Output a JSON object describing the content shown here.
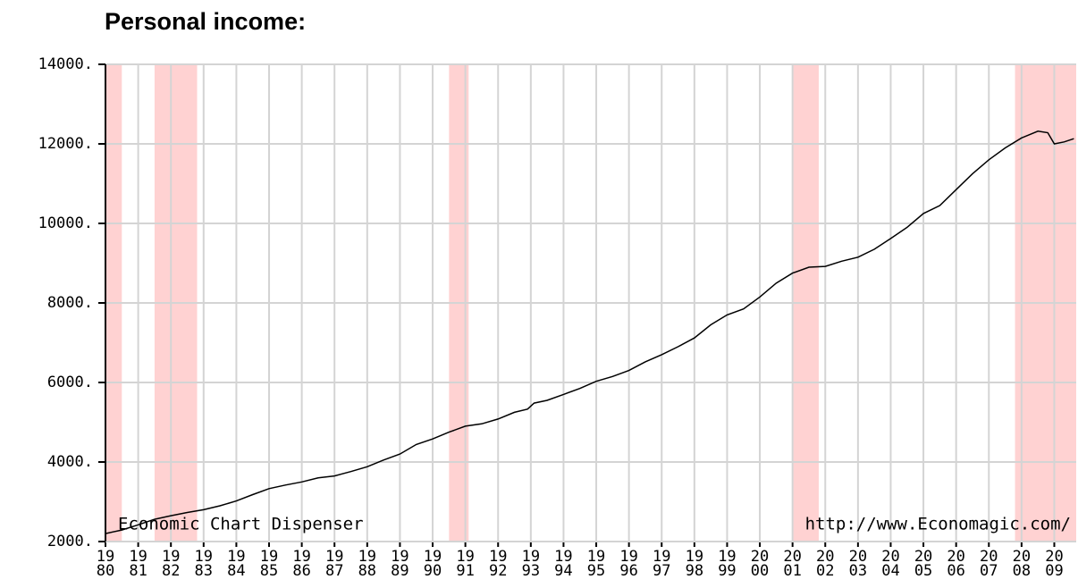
{
  "chart_data": {
    "type": "line",
    "title": "Personal income:",
    "annotations": [
      "Economic Chart Dispenser",
      "http://www.Economagic.com/"
    ],
    "x": [
      1980.0,
      1980.5,
      1981.0,
      1981.5,
      1982.0,
      1982.5,
      1983.0,
      1983.5,
      1984.0,
      1984.5,
      1985.0,
      1985.5,
      1986.0,
      1986.5,
      1987.0,
      1987.5,
      1988.0,
      1988.5,
      1989.0,
      1989.5,
      1990.0,
      1990.5,
      1991.0,
      1991.5,
      1992.0,
      1992.5,
      1992.9,
      1993.1,
      1993.5,
      1994.0,
      1994.5,
      1995.0,
      1995.5,
      1996.0,
      1996.5,
      1997.0,
      1997.5,
      1998.0,
      1998.5,
      1999.0,
      1999.5,
      2000.0,
      2000.5,
      2001.0,
      2001.5,
      2002.0,
      2002.5,
      2003.0,
      2003.5,
      2004.0,
      2004.5,
      2005.0,
      2005.5,
      2006.0,
      2006.5,
      2007.0,
      2007.5,
      2008.0,
      2008.5,
      2008.8,
      2009.0,
      2009.3,
      2009.6
    ],
    "series": [
      {
        "name": "Personal income",
        "color": "#000000",
        "values": [
          2200,
          2290,
          2420,
          2560,
          2650,
          2730,
          2800,
          2900,
          3020,
          3180,
          3330,
          3420,
          3500,
          3600,
          3650,
          3760,
          3880,
          4050,
          4200,
          4440,
          4580,
          4750,
          4900,
          4960,
          5080,
          5250,
          5330,
          5480,
          5550,
          5700,
          5850,
          6030,
          6150,
          6300,
          6520,
          6700,
          6900,
          7120,
          7450,
          7700,
          7850,
          8150,
          8500,
          8750,
          8900,
          8920,
          9050,
          9150,
          9350,
          9620,
          9900,
          10250,
          10450,
          10850,
          11250,
          11600,
          11900,
          12150,
          12320,
          12280,
          12000,
          12050,
          12130
        ]
      }
    ],
    "recessions": [
      [
        1980.0,
        1980.5
      ],
      [
        1981.5,
        1982.8
      ],
      [
        1990.5,
        1991.1
      ],
      [
        2001.0,
        2001.8
      ],
      [
        2007.8,
        2009.67
      ]
    ],
    "recession_color": "#ffd2d2",
    "xlim": [
      1980,
      2009.67
    ],
    "xticks": [
      {
        "value": 1980,
        "label": "19\n80"
      },
      {
        "value": 1981,
        "label": "19\n81"
      },
      {
        "value": 1982,
        "label": "19\n82"
      },
      {
        "value": 1983,
        "label": "19\n83"
      },
      {
        "value": 1984,
        "label": "19\n84"
      },
      {
        "value": 1985,
        "label": "19\n85"
      },
      {
        "value": 1986,
        "label": "19\n86"
      },
      {
        "value": 1987,
        "label": "19\n87"
      },
      {
        "value": 1988,
        "label": "19\n88"
      },
      {
        "value": 1989,
        "label": "19\n89"
      },
      {
        "value": 1990,
        "label": "19\n90"
      },
      {
        "value": 1991,
        "label": "19\n91"
      },
      {
        "value": 1992,
        "label": "19\n92"
      },
      {
        "value": 1993,
        "label": "19\n93"
      },
      {
        "value": 1994,
        "label": "19\n94"
      },
      {
        "value": 1995,
        "label": "19\n95"
      },
      {
        "value": 1996,
        "label": "19\n96"
      },
      {
        "value": 1997,
        "label": "19\n97"
      },
      {
        "value": 1998,
        "label": "19\n98"
      },
      {
        "value": 1999,
        "label": "19\n99"
      },
      {
        "value": 2000,
        "label": "20\n00"
      },
      {
        "value": 2001,
        "label": "20\n01"
      },
      {
        "value": 2002,
        "label": "20\n02"
      },
      {
        "value": 2003,
        "label": "20\n03"
      },
      {
        "value": 2004,
        "label": "20\n04"
      },
      {
        "value": 2005,
        "label": "20\n05"
      },
      {
        "value": 2006,
        "label": "20\n06"
      },
      {
        "value": 2007,
        "label": "20\n07"
      },
      {
        "value": 2008,
        "label": "20\n08"
      },
      {
        "value": 2009,
        "label": "20\n09"
      }
    ],
    "ylim": [
      2000,
      14000
    ],
    "yticks": [
      {
        "value": 2000,
        "label": "2000."
      },
      {
        "value": 4000,
        "label": "4000."
      },
      {
        "value": 6000,
        "label": "6000."
      },
      {
        "value": 8000,
        "label": "8000."
      },
      {
        "value": 10000,
        "label": "10000."
      },
      {
        "value": 12000,
        "label": "12000."
      },
      {
        "value": 14000,
        "label": "14000."
      }
    ],
    "grid": true
  }
}
